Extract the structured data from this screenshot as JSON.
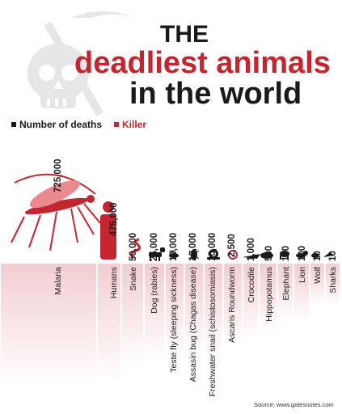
{
  "title": {
    "line1": "THE",
    "line2": "deadliest animals",
    "line3": "in the world"
  },
  "legend": {
    "deaths_label": "Number of deaths",
    "killer_label": "Killer"
  },
  "source": "Source: www.gatesnotes.com",
  "colors": {
    "accent": "#c4252e",
    "bar": "#f2cdd0",
    "text": "#1a1a1a",
    "skull": "#e6e6e6"
  },
  "icons": [
    "skull-scythe-icon",
    "mosquito-icon",
    "human-icon",
    "snake-icon",
    "dog-icon",
    "fly-icon",
    "bug-icon",
    "snail-icon",
    "worm-icon",
    "crocodile-icon",
    "hippo-icon",
    "elephant-icon",
    "lion-icon",
    "wolf-icon",
    "shark-icon"
  ],
  "chart_data": {
    "type": "bar",
    "title": "THE deadliest animals in the world",
    "categories": [
      "Malaria",
      "Humans",
      "Snake",
      "Dog (rabies)",
      "Teste fly (sleeping sickness)",
      "Assasin bug (Chagas disease)",
      "Freshwater snail (schistosomiasis)",
      "Ascaris Roundworm",
      "Crocodile",
      "Hippopotamus",
      "Elephant",
      "Lion",
      "Wolf",
      "Sharks"
    ],
    "value_labels": [
      "725,000",
      "475,000",
      "50,000",
      "25,000",
      "10,000",
      "10,000",
      "10,000",
      "2,500",
      "1,000",
      "500",
      "100",
      "100",
      "10",
      "10"
    ],
    "series": [
      {
        "name": "Number of deaths",
        "values": [
          725000,
          475000,
          50000,
          25000,
          10000,
          10000,
          10000,
          2500,
          1000,
          500,
          100,
          100,
          10,
          10
        ]
      }
    ],
    "legend_position": "top-left",
    "grid": false
  }
}
